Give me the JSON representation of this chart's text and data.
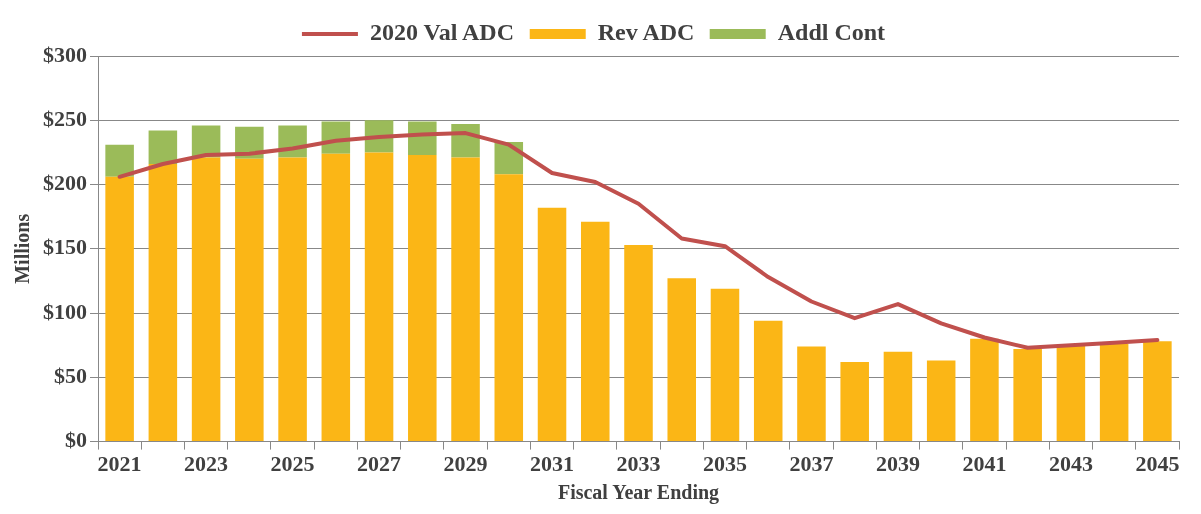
{
  "chart_data": {
    "type": "bar",
    "stacked": true,
    "xlabel": "Fiscal Year Ending",
    "ylabel": "Millions",
    "categories": [
      "2021",
      null,
      "2023",
      null,
      "2025",
      null,
      "2027",
      null,
      "2029",
      null,
      "2031",
      null,
      "2033",
      null,
      "2035",
      null,
      "2037",
      null,
      "2039",
      null,
      "2041",
      null,
      "2043",
      null,
      "2045"
    ],
    "series": [
      {
        "name": "Rev ADC",
        "color": "#fbb616",
        "values": [
          206,
          216,
          221,
          220,
          221,
          224,
          225,
          223,
          221,
          208,
          182,
          171,
          153,
          127,
          119,
          94,
          74,
          62,
          70,
          63,
          80,
          72,
          75,
          76,
          78
        ]
      },
      {
        "name": "Addl Cont",
        "color": "#9bbb59",
        "values": [
          25,
          26,
          25,
          25,
          25,
          25,
          25,
          26,
          26,
          25,
          null,
          null,
          null,
          null,
          null,
          null,
          null,
          null,
          null,
          null,
          null,
          null,
          null,
          null,
          null
        ]
      },
      {
        "name": "2020 Val ADC",
        "type": "line",
        "color": "#c0504d",
        "marker": "none",
        "values": [
          206,
          216,
          223,
          224,
          228,
          234,
          237,
          239,
          240,
          231,
          209,
          202,
          185,
          158,
          152,
          128,
          109,
          96,
          107,
          92,
          81,
          73,
          75,
          77,
          79
        ]
      }
    ],
    "ylim": [
      0,
      300
    ],
    "yticks": [
      {
        "value": 0,
        "label": "$0"
      },
      {
        "value": 50,
        "label": "$50"
      },
      {
        "value": 100,
        "label": "$100"
      },
      {
        "value": 150,
        "label": "$150"
      },
      {
        "value": 200,
        "label": "$200"
      },
      {
        "value": 250,
        "label": "$250"
      },
      {
        "value": 300,
        "label": "$300"
      }
    ],
    "grid": "y",
    "legend": "top"
  }
}
